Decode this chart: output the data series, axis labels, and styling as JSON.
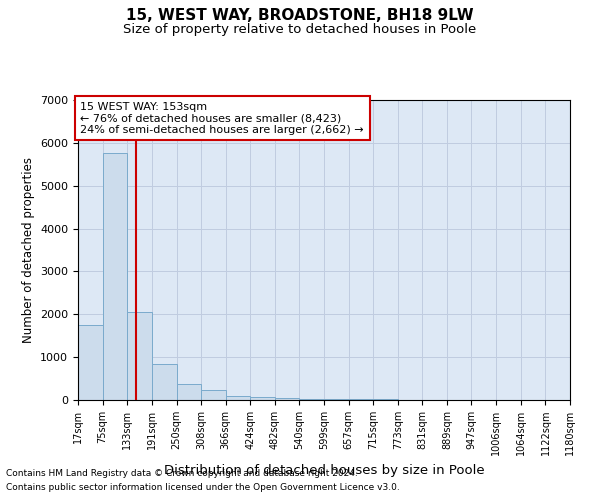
{
  "title": "15, WEST WAY, BROADSTONE, BH18 9LW",
  "subtitle": "Size of property relative to detached houses in Poole",
  "xlabel": "Distribution of detached houses by size in Poole",
  "ylabel": "Number of detached properties",
  "bin_edges": [
    17,
    75,
    133,
    191,
    250,
    308,
    366,
    424,
    482,
    540,
    599,
    657,
    715,
    773,
    831,
    889,
    947,
    1006,
    1064,
    1122,
    1180
  ],
  "bar_heights": [
    1760,
    5770,
    2050,
    830,
    375,
    240,
    100,
    65,
    50,
    30,
    20,
    18,
    15,
    0,
    0,
    0,
    0,
    0,
    0,
    0
  ],
  "bar_color": "#ccdcec",
  "bar_edge_color": "#7aaacc",
  "property_size": 153,
  "vline_color": "#cc0000",
  "annotation_text": "15 WEST WAY: 153sqm\n← 76% of detached houses are smaller (8,423)\n24% of semi-detached houses are larger (2,662) →",
  "annotation_box_color": "#ffffff",
  "annotation_box_edge": "#cc0000",
  "ylim": [
    0,
    7000
  ],
  "yticks": [
    0,
    1000,
    2000,
    3000,
    4000,
    5000,
    6000,
    7000
  ],
  "footnote1": "Contains HM Land Registry data © Crown copyright and database right 2024.",
  "footnote2": "Contains public sector information licensed under the Open Government Licence v3.0.",
  "title_fontsize": 11,
  "subtitle_fontsize": 9.5,
  "axis_bg_color": "#dde8f5",
  "background_color": "#ffffff",
  "grid_color": "#c0cce0"
}
